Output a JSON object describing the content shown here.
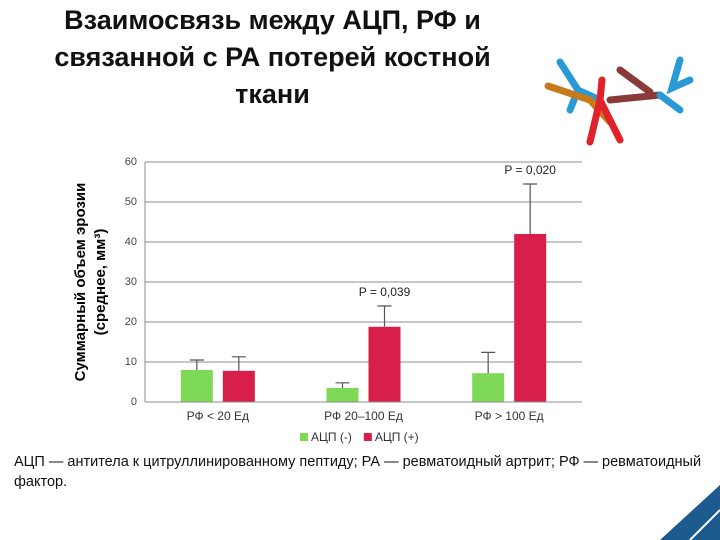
{
  "chart_data": {
    "type": "bar",
    "title": "Взаимосвязь между АЦП, РФ и связанной с РА потерей костной ткани",
    "y_label": [
      "Суммарный объем эрозии",
      "(среднее, мм³)"
    ],
    "categories": [
      "РФ < 20 Ед",
      "РФ 20–100 Ед",
      "РФ > 100 Ед"
    ],
    "series": [
      {
        "name": "АЦП (-)",
        "color": "#7ed957",
        "values": [
          8,
          3.5,
          7.2
        ],
        "errors": [
          2.5,
          1.3,
          5.2
        ]
      },
      {
        "name": "АЦП (+)",
        "color": "#d81e4a",
        "values": [
          7.8,
          18.8,
          42
        ],
        "errors": [
          3.5,
          5.2,
          12.5
        ]
      }
    ],
    "p_values": [
      null,
      "P = 0,039",
      "P = 0,020"
    ],
    "ylim": [
      0,
      60
    ],
    "yticks": [
      0,
      10,
      20,
      30,
      40,
      50,
      60
    ],
    "grid": true,
    "footnote": "АЦП — антитела к цитруллинированному пептиду; РА — ревматоидный артрит; РФ — ревматоидный фактор."
  }
}
